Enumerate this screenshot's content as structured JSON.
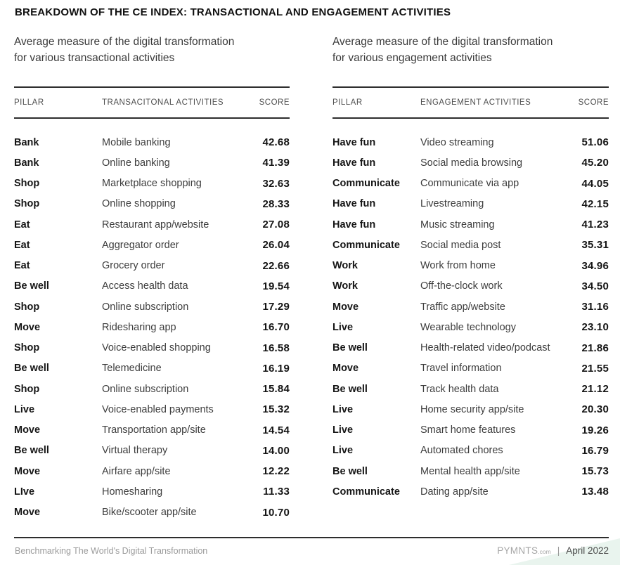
{
  "header": {
    "title": "BREAKDOWN OF THE CE INDEX: TRANSACTIONAL AND ENGAGEMENT ACTIVITIES"
  },
  "tables": [
    {
      "subtitle_line1": "Average measure of the digital transformation",
      "subtitle_line2": "for various transactional activities",
      "columns": {
        "pillar": "PILLAR",
        "activity": "TRANSACITONAL ACTIVITIES",
        "score": "SCORE"
      },
      "rows": [
        {
          "pillar": "Bank",
          "activity": "Mobile banking",
          "score": "42.68"
        },
        {
          "pillar": "Bank",
          "activity": "Online banking",
          "score": "41.39"
        },
        {
          "pillar": "Shop",
          "activity": "Marketplace shopping",
          "score": "32.63"
        },
        {
          "pillar": "Shop",
          "activity": "Online shopping",
          "score": "28.33"
        },
        {
          "pillar": "Eat",
          "activity": "Restaurant app/website",
          "score": "27.08"
        },
        {
          "pillar": "Eat",
          "activity": "Aggregator order",
          "score": "26.04"
        },
        {
          "pillar": "Eat",
          "activity": "Grocery order",
          "score": "22.66"
        },
        {
          "pillar": "Be well",
          "activity": "Access health data",
          "score": "19.54"
        },
        {
          "pillar": "Shop",
          "activity": "Online subscription",
          "score": "17.29"
        },
        {
          "pillar": "Move",
          "activity": "Ridesharing app",
          "score": "16.70"
        },
        {
          "pillar": "Shop",
          "activity": "Voice-enabled shopping",
          "score": "16.58"
        },
        {
          "pillar": "Be well",
          "activity": "Telemedicine",
          "score": "16.19"
        },
        {
          "pillar": "Shop",
          "activity": "Online subscription",
          "score": "15.84"
        },
        {
          "pillar": "Live",
          "activity": "Voice-enabled payments",
          "score": "15.32"
        },
        {
          "pillar": "Move",
          "activity": "Transportation app/site",
          "score": "14.54"
        },
        {
          "pillar": "Be well",
          "activity": "Virtual therapy",
          "score": "14.00"
        },
        {
          "pillar": "Move",
          "activity": "Airfare app/site",
          "score": "12.22"
        },
        {
          "pillar": "LIve",
          "activity": "Homesharing",
          "score": "11.33"
        },
        {
          "pillar": "Move",
          "activity": "Bike/scooter app/site",
          "score": "10.70"
        }
      ]
    },
    {
      "subtitle_line1": "Average measure of the digital transformation",
      "subtitle_line2": "for various engagement activities",
      "columns": {
        "pillar": "PILLAR",
        "activity": "ENGAGEMENT ACTIVITIES",
        "score": "SCORE"
      },
      "rows": [
        {
          "pillar": "Have fun",
          "activity": "Video streaming",
          "score": "51.06"
        },
        {
          "pillar": "Have fun",
          "activity": "Social media browsing",
          "score": "45.20"
        },
        {
          "pillar": "Communicate",
          "activity": "Communicate via app",
          "score": "44.05"
        },
        {
          "pillar": "Have fun",
          "activity": "Livestreaming",
          "score": "42.15"
        },
        {
          "pillar": "Have fun",
          "activity": "Music streaming",
          "score": "41.23"
        },
        {
          "pillar": "Communicate",
          "activity": "Social media post",
          "score": "35.31"
        },
        {
          "pillar": "Work",
          "activity": "Work from home",
          "score": "34.96"
        },
        {
          "pillar": "Work",
          "activity": "Off-the-clock work",
          "score": "34.50"
        },
        {
          "pillar": "Move",
          "activity": "Traffic app/website",
          "score": "31.16"
        },
        {
          "pillar": "Live",
          "activity": "Wearable technology",
          "score": "23.10"
        },
        {
          "pillar": "Be well",
          "activity": "Health-related video/podcast",
          "score": "21.86"
        },
        {
          "pillar": "Move",
          "activity": "Travel information",
          "score": "21.55"
        },
        {
          "pillar": "Be well",
          "activity": "Track health data",
          "score": "21.12"
        },
        {
          "pillar": "Live",
          "activity": "Home security app/site",
          "score": "20.30"
        },
        {
          "pillar": "Live",
          "activity": "Smart home features",
          "score": "19.26"
        },
        {
          "pillar": "Live",
          "activity": "Automated chores",
          "score": "16.79"
        },
        {
          "pillar": "Be well",
          "activity": "Mental health app/site",
          "score": "15.73"
        },
        {
          "pillar": "Communicate",
          "activity": "Dating app/site",
          "score": "13.48"
        }
      ]
    }
  ],
  "footer": {
    "left_text": "Benchmarking The World's Digital Transformation",
    "brand": "PYMNTS",
    "brand_suffix": ".com",
    "separator": "|",
    "date": "April 2022"
  },
  "colors": {
    "rule": "#2d2d2d",
    "accent_triangle": "#e9f4ee"
  }
}
